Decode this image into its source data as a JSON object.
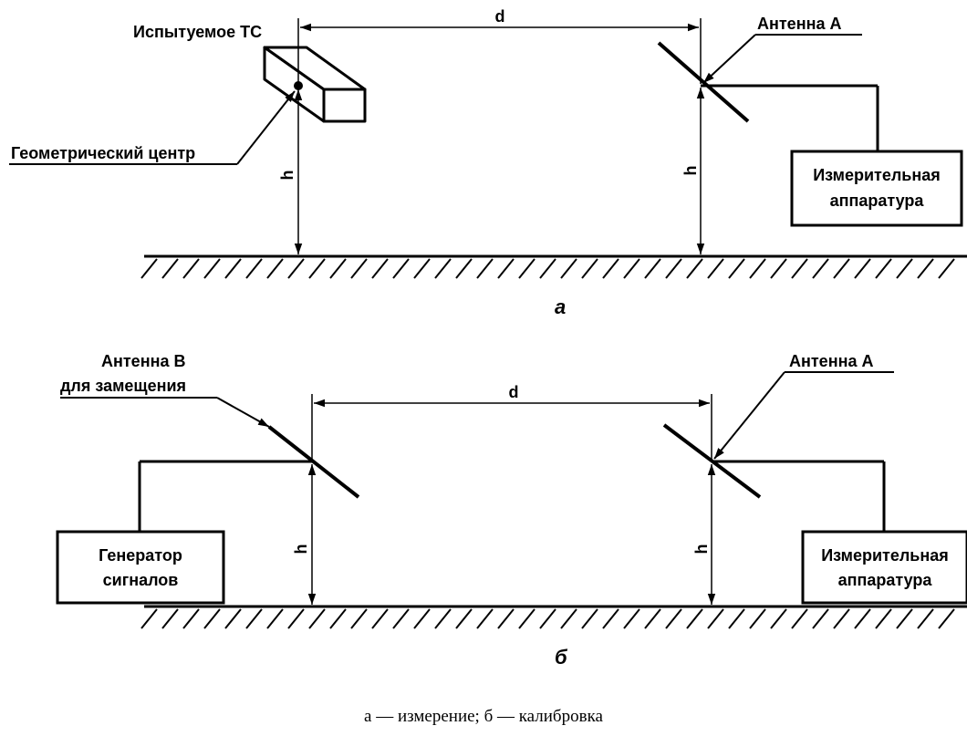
{
  "diagram_a": {
    "tested_vehicle_label": "Испытуемое ТС",
    "distance_label": "d",
    "antenna_a_label": "Антенна А",
    "geometric_center_label": "Геометрический центр",
    "height_left_label": "h",
    "height_right_label": "h",
    "measuring_equipment_line1": "Измерительная",
    "measuring_equipment_line2": "аппаратура",
    "panel_letter": "а"
  },
  "diagram_b": {
    "antenna_b_line1": "Антенна В",
    "antenna_b_line2": "для замещения",
    "distance_label": "d",
    "antenna_a_label": "Антенна А",
    "generator_line1": "Генератор",
    "generator_line2": "сигналов",
    "height_left_label": "h",
    "height_right_label": "h",
    "measuring_equipment_line1": "Измерительная",
    "measuring_equipment_line2": "аппаратура",
    "panel_letter": "б"
  },
  "caption": "а — измерение; б — калибровка"
}
